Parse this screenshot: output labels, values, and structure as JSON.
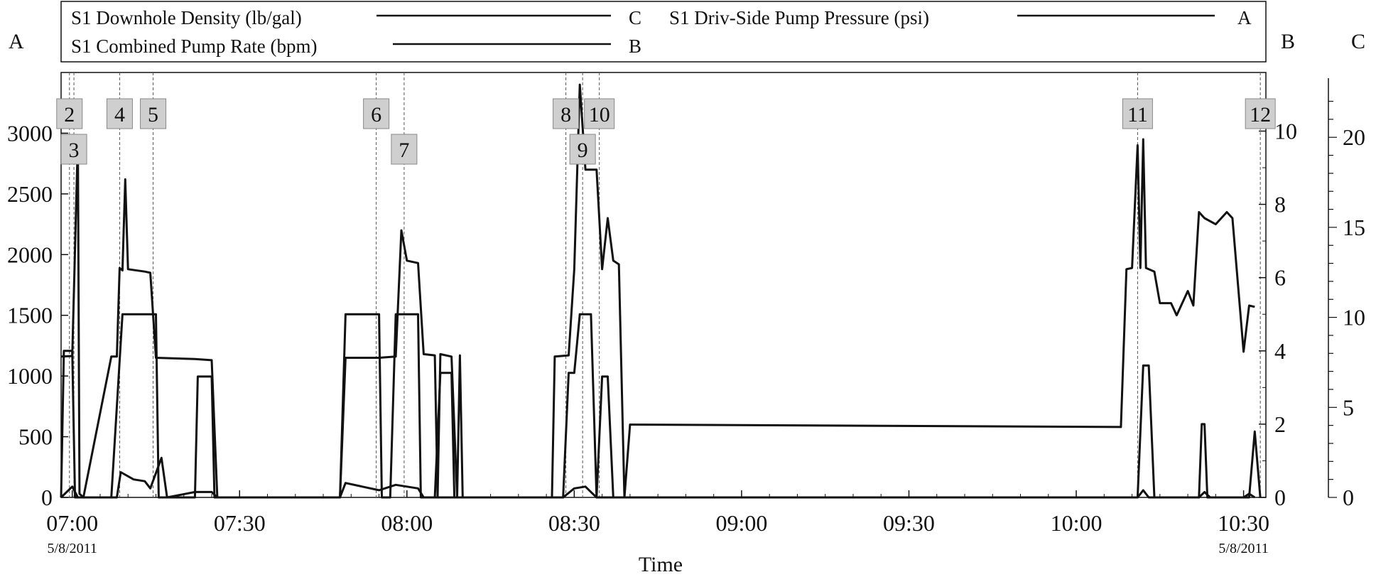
{
  "legend": {
    "entries": [
      {
        "label": "S1 Downhole Density (lb/gal)",
        "axis": "C"
      },
      {
        "label": "S1 Driv-Side Pump Pressure (psi)",
        "axis": "A"
      },
      {
        "label": "S1 Combined Pump Rate (bpm)",
        "axis": "B"
      }
    ]
  },
  "axis_names": {
    "left": "A",
    "right1": "B",
    "right2": "C"
  },
  "chart_data": {
    "type": "line",
    "xlabel": "Time",
    "x_tick_labels": [
      "07:00",
      "07:30",
      "08:00",
      "08:30",
      "09:00",
      "09:30",
      "10:00",
      "10:30"
    ],
    "x_ticks_min": [
      0,
      30,
      60,
      90,
      120,
      150,
      180,
      210
    ],
    "x_start_date": "5/8/2011",
    "x_end_date": "5/8/2011",
    "xlim_min": [
      -2,
      214
    ],
    "axes": {
      "A": {
        "ticks": [
          0,
          500,
          1000,
          1500,
          2000,
          2500,
          3000
        ],
        "tick_labels": [
          "0",
          "500",
          "1000",
          "1500",
          "2000",
          "2500",
          "3000"
        ],
        "ylim": [
          0,
          3500
        ]
      },
      "B": {
        "ticks": [
          0,
          2,
          4,
          6,
          8,
          10
        ],
        "ylim": [
          0,
          11.6
        ]
      },
      "C": {
        "ticks": [
          0,
          5,
          10,
          15,
          20
        ],
        "ylim": [
          0,
          23.6
        ]
      }
    },
    "event_markers": [
      {
        "label": "2",
        "t": -0.5,
        "row": 1
      },
      {
        "label": "3",
        "t": 0.3,
        "row": 2
      },
      {
        "label": "4",
        "t": 8.5,
        "row": 1
      },
      {
        "label": "5",
        "t": 14.5,
        "row": 1
      },
      {
        "label": "6",
        "t": 54.5,
        "row": 1
      },
      {
        "label": "7",
        "t": 59.5,
        "row": 2
      },
      {
        "label": "8",
        "t": 88.5,
        "row": 1
      },
      {
        "label": "9",
        "t": 91.5,
        "row": 2
      },
      {
        "label": "10",
        "t": 94.5,
        "row": 1
      },
      {
        "label": "11",
        "t": 191.0,
        "row": 1
      },
      {
        "label": "12",
        "t": 213.0,
        "row": 1
      }
    ],
    "series": [
      {
        "name": "S1 Driv-Side Pump Pressure (psi)",
        "axis": "A",
        "points": [
          [
            -2,
            1160
          ],
          [
            0,
            1165
          ],
          [
            1,
            2950
          ],
          [
            1.3,
            30
          ],
          [
            2,
            0
          ],
          [
            7,
            1160
          ],
          [
            8,
            1160
          ],
          [
            8.5,
            1890
          ],
          [
            9,
            1870
          ],
          [
            9.5,
            2620
          ],
          [
            10,
            1880
          ],
          [
            13,
            1860
          ],
          [
            14,
            1850
          ],
          [
            15,
            1150
          ],
          [
            22,
            1140
          ],
          [
            25,
            1130
          ],
          [
            26,
            0
          ],
          [
            48,
            0
          ],
          [
            49,
            1150
          ],
          [
            55,
            1150
          ],
          [
            58,
            1160
          ],
          [
            59,
            2200
          ],
          [
            60,
            1950
          ],
          [
            62,
            1930
          ],
          [
            63,
            1180
          ],
          [
            65,
            1170
          ],
          [
            65.5,
            0
          ],
          [
            66,
            1180
          ],
          [
            68,
            1160
          ],
          [
            69,
            0
          ],
          [
            69.5,
            1170
          ],
          [
            70,
            0
          ],
          [
            86,
            0
          ],
          [
            86.5,
            1160
          ],
          [
            89,
            1170
          ],
          [
            90,
            1880
          ],
          [
            91,
            3400
          ],
          [
            92,
            2700
          ],
          [
            94,
            2700
          ],
          [
            95,
            1880
          ],
          [
            96,
            2300
          ],
          [
            97,
            1950
          ],
          [
            98,
            1920
          ],
          [
            99,
            0
          ],
          [
            100,
            600
          ],
          [
            145,
            590
          ],
          [
            188,
            580
          ],
          [
            189,
            1880
          ],
          [
            190,
            1890
          ],
          [
            191,
            2900
          ],
          [
            191.5,
            1890
          ],
          [
            192,
            2950
          ],
          [
            192.5,
            1890
          ],
          [
            194,
            1860
          ],
          [
            195,
            1600
          ],
          [
            197,
            1600
          ],
          [
            198,
            1500
          ],
          [
            200,
            1700
          ],
          [
            201,
            1580
          ],
          [
            202,
            2350
          ],
          [
            203,
            2300
          ],
          [
            205,
            2250
          ],
          [
            207,
            2350
          ],
          [
            208,
            2300
          ],
          [
            210,
            1200
          ],
          [
            211,
            1580
          ],
          [
            212,
            1570
          ]
        ]
      },
      {
        "name": "S1 Combined Pump Rate (bpm)",
        "axis": "B",
        "points": [
          [
            -2,
            0
          ],
          [
            -1.5,
            4.0
          ],
          [
            0,
            4.0
          ],
          [
            0.5,
            0
          ],
          [
            7,
            0
          ],
          [
            9,
            5.0
          ],
          [
            15,
            5.0
          ],
          [
            15.5,
            0
          ],
          [
            22,
            0
          ],
          [
            22.5,
            3.3
          ],
          [
            25,
            3.3
          ],
          [
            25.5,
            0
          ],
          [
            48,
            0
          ],
          [
            49,
            5.0
          ],
          [
            55,
            5.0
          ],
          [
            55.5,
            0
          ],
          [
            57,
            0
          ],
          [
            58,
            5.0
          ],
          [
            62,
            5.0
          ],
          [
            62.5,
            0
          ],
          [
            65,
            0
          ],
          [
            66,
            3.4
          ],
          [
            68,
            3.4
          ],
          [
            68.5,
            0
          ],
          [
            88,
            0
          ],
          [
            89,
            3.4
          ],
          [
            90,
            3.4
          ],
          [
            91,
            5.0
          ],
          [
            93,
            5.0
          ],
          [
            94,
            0
          ],
          [
            95,
            3.3
          ],
          [
            96,
            3.3
          ],
          [
            97,
            0
          ],
          [
            191,
            0
          ],
          [
            192,
            3.6
          ],
          [
            193,
            3.6
          ],
          [
            194,
            0
          ],
          [
            202,
            0
          ],
          [
            202.5,
            2.0
          ],
          [
            203,
            2.0
          ],
          [
            203.5,
            0
          ],
          [
            211,
            0
          ],
          [
            212,
            1.8
          ],
          [
            213,
            0
          ]
        ]
      },
      {
        "name": "S1 Downhole Density (lb/gal)",
        "axis": "C",
        "points": [
          [
            -2,
            0
          ],
          [
            0,
            0.6
          ],
          [
            1,
            0
          ],
          [
            8,
            0
          ],
          [
            8.7,
            1.4
          ],
          [
            11,
            1.0
          ],
          [
            13,
            0.9
          ],
          [
            14,
            0.5
          ],
          [
            16,
            2.2
          ],
          [
            17,
            0
          ],
          [
            22,
            0.3
          ],
          [
            25,
            0.3
          ],
          [
            26,
            0
          ],
          [
            48,
            0
          ],
          [
            49,
            0.8
          ],
          [
            52,
            0.6
          ],
          [
            55,
            0.4
          ],
          [
            58,
            0.7
          ],
          [
            60,
            0.6
          ],
          [
            62,
            0.5
          ],
          [
            63,
            0
          ],
          [
            88,
            0
          ],
          [
            90,
            0.5
          ],
          [
            92,
            0.6
          ],
          [
            93,
            0.3
          ],
          [
            94,
            0
          ],
          [
            191,
            0
          ],
          [
            192,
            0.4
          ],
          [
            193,
            0
          ],
          [
            202,
            0
          ],
          [
            203,
            0.3
          ],
          [
            204,
            0
          ],
          [
            210,
            0
          ],
          [
            211,
            0.2
          ],
          [
            212,
            0
          ]
        ]
      }
    ]
  }
}
